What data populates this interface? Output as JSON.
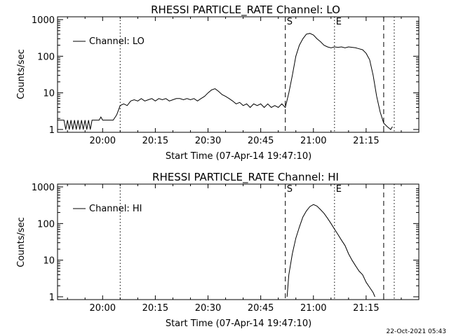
{
  "footer_date": "22-Oct-2021 05:43",
  "chart_data": [
    {
      "type": "line",
      "title": "RHESSI PARTICLE_RATE Channel: LO",
      "xlabel": "Start Time (07-Apr-14 19:47:10)",
      "ylabel": "Counts/sec",
      "yscale": "log",
      "ylim": [
        1,
        1000
      ],
      "xlim": [
        "19:47:10",
        "21:30:00"
      ],
      "x_tick_labels": [
        "20:00",
        "20:15",
        "20:30",
        "20:45",
        "21:00",
        "21:15"
      ],
      "y_tick_labels": [
        "1",
        "10",
        "100",
        "1000"
      ],
      "legend": {
        "label": "Channel: LO",
        "position": "top-left"
      },
      "markers": [
        {
          "time": "20:05",
          "style": "dotted"
        },
        {
          "time": "20:52",
          "style": "dashed",
          "label": "S"
        },
        {
          "time": "21:06",
          "style": "dotted",
          "label": "E"
        },
        {
          "time": "21:20",
          "style": "dashed"
        },
        {
          "time": "21:23",
          "style": "dotted"
        }
      ],
      "series": [
        {
          "name": "Channel: LO",
          "x": [
            "19:47:10",
            "19:49",
            "19:49:30",
            "19:50",
            "19:50:30",
            "19:51",
            "19:51:30",
            "19:52",
            "19:52:30",
            "19:53",
            "19:53:30",
            "19:54",
            "19:54:30",
            "19:55",
            "19:55:30",
            "19:56",
            "19:56:30",
            "19:57",
            "19:57:30",
            "19:58",
            "19:58:30",
            "19:59",
            "19:59:30",
            "20:00",
            "20:01",
            "20:02",
            "20:03",
            "20:04",
            "20:05",
            "20:06",
            "20:07",
            "20:08",
            "20:09",
            "20:10",
            "20:11",
            "20:12",
            "20:13",
            "20:14",
            "20:15",
            "20:16",
            "20:17",
            "20:18",
            "20:19",
            "20:20",
            "20:21",
            "20:22",
            "20:23",
            "20:24",
            "20:25",
            "20:26",
            "20:27",
            "20:28",
            "20:29",
            "20:30",
            "20:31",
            "20:32",
            "20:33",
            "20:34",
            "20:35",
            "20:36",
            "20:37",
            "20:38",
            "20:39",
            "20:40",
            "20:41",
            "20:42",
            "20:43",
            "20:44",
            "20:45",
            "20:46",
            "20:47",
            "20:48",
            "20:49",
            "20:50",
            "20:51",
            "20:52",
            "20:53",
            "20:54",
            "20:55",
            "20:56",
            "20:57",
            "20:58",
            "20:59",
            "21:00",
            "21:01",
            "21:02",
            "21:03",
            "21:04",
            "21:05",
            "21:06",
            "21:07",
            "21:08",
            "21:09",
            "21:10",
            "21:11",
            "21:12",
            "21:13",
            "21:14",
            "21:15",
            "21:16",
            "21:17",
            "21:18",
            "21:19",
            "21:20",
            "21:21",
            "21:22",
            "21:22:30"
          ],
          "values": [
            1.8,
            1.8,
            1.0,
            1.8,
            1.0,
            1.8,
            1.0,
            1.8,
            1.0,
            1.8,
            1.0,
            1.8,
            1.0,
            1.8,
            1.0,
            1.8,
            1.0,
            1.8,
            1.8,
            1.8,
            1.8,
            1.8,
            2.2,
            1.8,
            1.8,
            1.8,
            1.8,
            2.5,
            4.5,
            5,
            4.5,
            6,
            6.5,
            6,
            7,
            6,
            6.5,
            7,
            6,
            7,
            6.5,
            7,
            6,
            6.5,
            7,
            7,
            6.5,
            7,
            6.5,
            7,
            6,
            7,
            8,
            10,
            12,
            13,
            11,
            9,
            8,
            7,
            6,
            5,
            5.5,
            4.5,
            5,
            4,
            5,
            4.5,
            5,
            4,
            5,
            4,
            4.5,
            4,
            5,
            4,
            10,
            30,
            100,
            200,
            300,
            400,
            420,
            380,
            300,
            250,
            200,
            180,
            170,
            180,
            175,
            180,
            170,
            180,
            175,
            170,
            160,
            150,
            120,
            80,
            30,
            8,
            3,
            1.5,
            1.2,
            1.0,
            1.2
          ]
        }
      ]
    },
    {
      "type": "line",
      "title": "RHESSI PARTICLE_RATE Channel: HI",
      "xlabel": "Start Time (07-Apr-14 19:47:10)",
      "ylabel": "Counts/sec",
      "yscale": "log",
      "ylim": [
        1,
        1000
      ],
      "xlim": [
        "19:47:10",
        "21:30:00"
      ],
      "x_tick_labels": [
        "20:00",
        "20:15",
        "20:30",
        "20:45",
        "21:00",
        "21:15"
      ],
      "y_tick_labels": [
        "1",
        "10",
        "100",
        "1000"
      ],
      "legend": {
        "label": "Channel: HI",
        "position": "top-left"
      },
      "markers": [
        {
          "time": "20:05",
          "style": "dotted"
        },
        {
          "time": "20:52",
          "style": "dashed",
          "label": "S"
        },
        {
          "time": "21:06",
          "style": "dotted",
          "label": "E"
        },
        {
          "time": "21:20",
          "style": "dashed"
        },
        {
          "time": "21:23",
          "style": "dotted"
        }
      ],
      "series": [
        {
          "name": "Channel: HI",
          "x": [
            "20:52:30",
            "20:53",
            "20:54",
            "20:55",
            "20:56",
            "20:57",
            "20:58",
            "20:59",
            "21:00",
            "21:01",
            "21:02",
            "21:03",
            "21:04",
            "21:05",
            "21:06",
            "21:07",
            "21:08",
            "21:09",
            "21:10",
            "21:11",
            "21:12",
            "21:13",
            "21:14",
            "21:15",
            "21:16",
            "21:17",
            "21:17:30"
          ],
          "values": [
            1,
            4,
            15,
            40,
            80,
            150,
            220,
            290,
            330,
            300,
            240,
            190,
            140,
            100,
            70,
            50,
            35,
            25,
            15,
            10,
            7,
            5,
            4,
            2.5,
            1.8,
            1.3,
            1
          ]
        }
      ]
    }
  ]
}
